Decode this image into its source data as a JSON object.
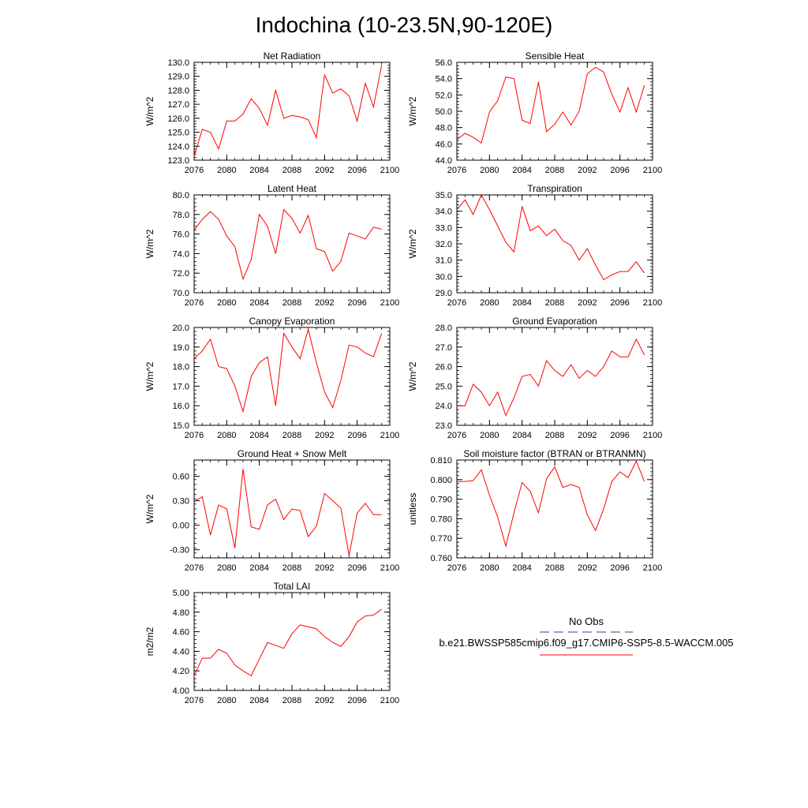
{
  "page_title": "Indochina (10-23.5N,90-120E)",
  "colors": {
    "series": "#ff0000",
    "obs": "#3b3b8f",
    "axis": "#000000"
  },
  "legend": {
    "obs_label": "No Obs",
    "model_label": "b.e21.BWSSP585cmip6.f09_g17.CMIP6-SSP5-8.5-WACCM.005"
  },
  "x_years": [
    2076,
    2077,
    2078,
    2079,
    2080,
    2081,
    2082,
    2083,
    2084,
    2085,
    2086,
    2087,
    2088,
    2089,
    2090,
    2091,
    2092,
    2093,
    2094,
    2095,
    2096,
    2097,
    2098,
    2099
  ],
  "chart_data": [
    {
      "type": "line",
      "title": "Net Radiation",
      "ylabel": "W/m^2",
      "xlim": [
        2076,
        2100
      ],
      "ylim": [
        123.0,
        130.0
      ],
      "decimals": 1,
      "xticks": [
        2076,
        2080,
        2084,
        2088,
        2092,
        2096,
        2100
      ],
      "yticks": [
        123.0,
        124.0,
        125.0,
        126.0,
        127.0,
        128.0,
        129.0,
        130.0
      ],
      "values": [
        123.3,
        125.2,
        125.0,
        123.8,
        125.8,
        125.8,
        126.3,
        127.4,
        126.7,
        125.5,
        128.0,
        126.0,
        126.2,
        126.1,
        125.9,
        124.6,
        129.1,
        127.8,
        128.1,
        127.6,
        125.8,
        128.5,
        126.8,
        129.8
      ]
    },
    {
      "type": "line",
      "title": "Sensible Heat",
      "ylabel": "W/m^2",
      "xlim": [
        2076,
        2100
      ],
      "ylim": [
        44.0,
        56.0
      ],
      "decimals": 1,
      "xticks": [
        2076,
        2080,
        2084,
        2088,
        2092,
        2096,
        2100
      ],
      "yticks": [
        44.0,
        46.0,
        48.0,
        50.0,
        52.0,
        54.0,
        56.0
      ],
      "values": [
        46.5,
        47.3,
        46.8,
        46.1,
        49.9,
        51.3,
        54.2,
        54.0,
        48.9,
        48.5,
        53.6,
        47.5,
        48.4,
        49.9,
        48.3,
        50.0,
        54.6,
        55.4,
        54.8,
        52.1,
        49.9,
        52.9,
        49.9,
        53.2
      ]
    },
    {
      "type": "line",
      "title": "Latent Heat",
      "ylabel": "W/m^2",
      "xlim": [
        2076,
        2100
      ],
      "ylim": [
        70.0,
        80.0
      ],
      "decimals": 1,
      "xticks": [
        2076,
        2080,
        2084,
        2088,
        2092,
        2096,
        2100
      ],
      "yticks": [
        70.0,
        72.0,
        74.0,
        76.0,
        78.0,
        80.0
      ],
      "values": [
        76.4,
        77.5,
        78.3,
        77.5,
        75.8,
        74.7,
        71.4,
        73.4,
        78.0,
        76.8,
        74.0,
        78.5,
        77.6,
        76.1,
        77.9,
        74.5,
        74.2,
        72.2,
        73.2,
        76.1,
        75.8,
        75.5,
        76.7,
        76.5
      ]
    },
    {
      "type": "line",
      "title": "Transpiration",
      "ylabel": "W/m^2",
      "xlim": [
        2076,
        2100
      ],
      "ylim": [
        29.0,
        35.0
      ],
      "decimals": 1,
      "xticks": [
        2076,
        2080,
        2084,
        2088,
        2092,
        2096,
        2100
      ],
      "yticks": [
        29.0,
        30.0,
        31.0,
        32.0,
        33.0,
        34.0,
        35.0
      ],
      "values": [
        34.1,
        34.7,
        33.8,
        35.0,
        34.1,
        33.1,
        32.1,
        31.5,
        34.3,
        32.8,
        33.1,
        32.5,
        32.9,
        32.2,
        31.9,
        31.0,
        31.7,
        30.7,
        29.8,
        30.1,
        30.3,
        30.3,
        30.9,
        30.2
      ]
    },
    {
      "type": "line",
      "title": "Canopy Evaporation",
      "ylabel": "W/m^2",
      "xlim": [
        2076,
        2100
      ],
      "ylim": [
        15.0,
        20.0
      ],
      "decimals": 1,
      "xticks": [
        2076,
        2080,
        2084,
        2088,
        2092,
        2096,
        2100
      ],
      "yticks": [
        15.0,
        16.0,
        17.0,
        18.0,
        19.0,
        20.0
      ],
      "values": [
        18.4,
        18.8,
        19.4,
        18.0,
        17.9,
        17.0,
        15.7,
        17.5,
        18.2,
        18.5,
        16.0,
        19.7,
        19.0,
        18.4,
        19.9,
        18.2,
        16.7,
        15.9,
        17.3,
        19.1,
        19.0,
        18.7,
        18.5,
        19.7
      ]
    },
    {
      "type": "line",
      "title": "Ground Evaporation",
      "ylabel": "W/m^2",
      "xlim": [
        2076,
        2100
      ],
      "ylim": [
        23.0,
        28.0
      ],
      "decimals": 1,
      "xticks": [
        2076,
        2080,
        2084,
        2088,
        2092,
        2096,
        2100
      ],
      "yticks": [
        23.0,
        24.0,
        25.0,
        26.0,
        27.0,
        28.0
      ],
      "values": [
        24.0,
        24.0,
        25.1,
        24.7,
        24.0,
        24.7,
        23.5,
        24.4,
        25.5,
        25.6,
        25.0,
        26.3,
        25.8,
        25.5,
        26.1,
        25.4,
        25.8,
        25.5,
        26.0,
        26.8,
        26.5,
        26.5,
        27.4,
        26.6
      ]
    },
    {
      "type": "line",
      "title": "Ground Heat + Snow Melt",
      "ylabel": "W/m^2",
      "xlim": [
        2076,
        2100
      ],
      "ylim": [
        -0.4,
        0.8
      ],
      "decimals": 2,
      "xticks": [
        2076,
        2080,
        2084,
        2088,
        2092,
        2096,
        2100
      ],
      "yticks": [
        -0.3,
        0.0,
        0.3,
        0.6
      ],
      "values": [
        0.29,
        0.35,
        -0.12,
        0.25,
        0.2,
        -0.28,
        0.69,
        -0.02,
        -0.05,
        0.25,
        0.32,
        0.07,
        0.2,
        0.18,
        -0.14,
        -0.01,
        0.39,
        0.3,
        0.21,
        -0.37,
        0.15,
        0.27,
        0.13,
        0.13
      ]
    },
    {
      "type": "line",
      "title": "Soil moisture factor (BTRAN or BTRANMN)",
      "ylabel": "unitless",
      "xlim": [
        2076,
        2100
      ],
      "ylim": [
        0.76,
        0.81
      ],
      "decimals": 3,
      "xticks": [
        2076,
        2080,
        2084,
        2088,
        2092,
        2096,
        2100
      ],
      "yticks": [
        0.76,
        0.77,
        0.78,
        0.79,
        0.8,
        0.81
      ],
      "values": [
        0.799,
        0.799,
        0.7995,
        0.805,
        0.792,
        0.781,
        0.766,
        0.783,
        0.7985,
        0.794,
        0.783,
        0.8005,
        0.8065,
        0.796,
        0.7975,
        0.796,
        0.782,
        0.774,
        0.785,
        0.799,
        0.804,
        0.801,
        0.8095,
        0.799
      ]
    },
    {
      "type": "line",
      "title": "Total LAI",
      "ylabel": "m2/m2",
      "xlim": [
        2076,
        2100
      ],
      "ylim": [
        4.0,
        5.0
      ],
      "decimals": 2,
      "xticks": [
        2076,
        2080,
        2084,
        2088,
        2092,
        2096,
        2100
      ],
      "yticks": [
        4.0,
        4.2,
        4.4,
        4.6,
        4.8,
        5.0
      ],
      "values": [
        4.15,
        4.33,
        4.33,
        4.42,
        4.38,
        4.26,
        4.2,
        4.15,
        4.32,
        4.49,
        4.46,
        4.43,
        4.58,
        4.67,
        4.65,
        4.63,
        4.55,
        4.49,
        4.45,
        4.55,
        4.7,
        4.76,
        4.77,
        4.83
      ]
    }
  ]
}
